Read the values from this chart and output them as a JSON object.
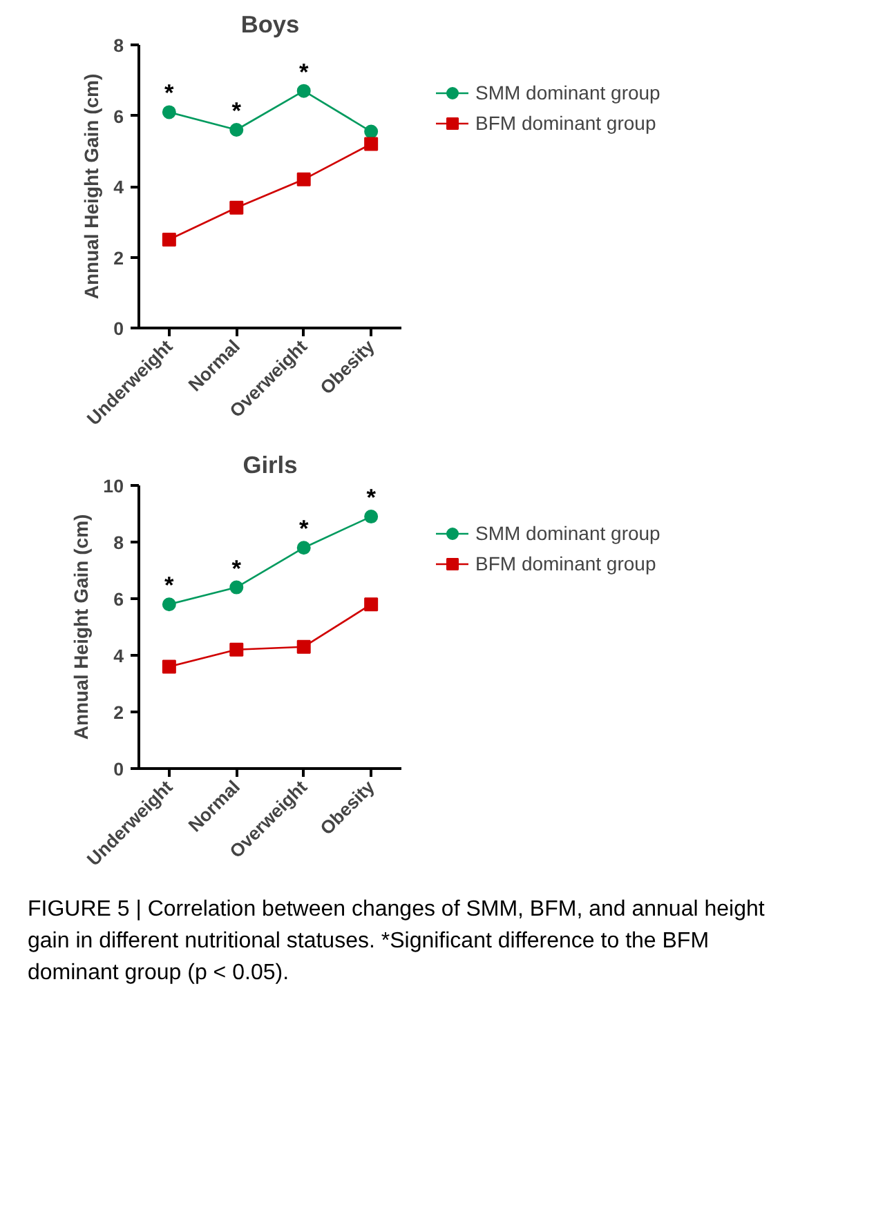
{
  "chart_data": [
    {
      "type": "line",
      "title": "Boys",
      "ylabel": "Annual Height Gain (cm)",
      "categories": [
        "Underweight",
        "Normal",
        "Overweight",
        "Obesity"
      ],
      "series": [
        {
          "name": "SMM dominant group",
          "color": "#009a5e",
          "marker": "circle",
          "values": [
            6.1,
            5.6,
            6.7,
            5.55
          ]
        },
        {
          "name": "BFM dominant group",
          "color": "#d00000",
          "marker": "square",
          "values": [
            2.5,
            3.4,
            4.2,
            5.2
          ]
        }
      ],
      "ylim": [
        0,
        8
      ],
      "yticks": [
        0,
        2,
        4,
        6,
        8
      ],
      "grid": false,
      "legend": "right",
      "annotations": [
        {
          "text": "*",
          "x": "Underweight",
          "y": 6.1
        },
        {
          "text": "*",
          "x": "Normal",
          "y": 5.6
        },
        {
          "text": "*",
          "x": "Overweight",
          "y": 6.7
        }
      ]
    },
    {
      "type": "line",
      "title": "Girls",
      "ylabel": "Annual Height Gain (cm)",
      "categories": [
        "Underweight",
        "Normal",
        "Overweight",
        "Obesity"
      ],
      "series": [
        {
          "name": "SMM dominant group",
          "color": "#009a5e",
          "marker": "circle",
          "values": [
            5.8,
            6.4,
            7.8,
            8.9
          ]
        },
        {
          "name": "BFM dominant group",
          "color": "#d00000",
          "marker": "square",
          "values": [
            3.6,
            4.2,
            4.3,
            5.8
          ]
        }
      ],
      "ylim": [
        0,
        10
      ],
      "yticks": [
        0,
        2,
        4,
        6,
        8,
        10
      ],
      "grid": false,
      "legend": "right",
      "annotations": [
        {
          "text": "*",
          "x": "Underweight",
          "y": 5.8
        },
        {
          "text": "*",
          "x": "Normal",
          "y": 6.4
        },
        {
          "text": "*",
          "x": "Overweight",
          "y": 7.8
        },
        {
          "text": "*",
          "x": "Obesity",
          "y": 8.9
        },
        "FIGURE 5 | Correlation between changes of SMM, BFM, and annual height gain in different nutritional statuses. *Significant difference to the BFM dominant group (p < 0.05)."
      ]
    }
  ]
}
